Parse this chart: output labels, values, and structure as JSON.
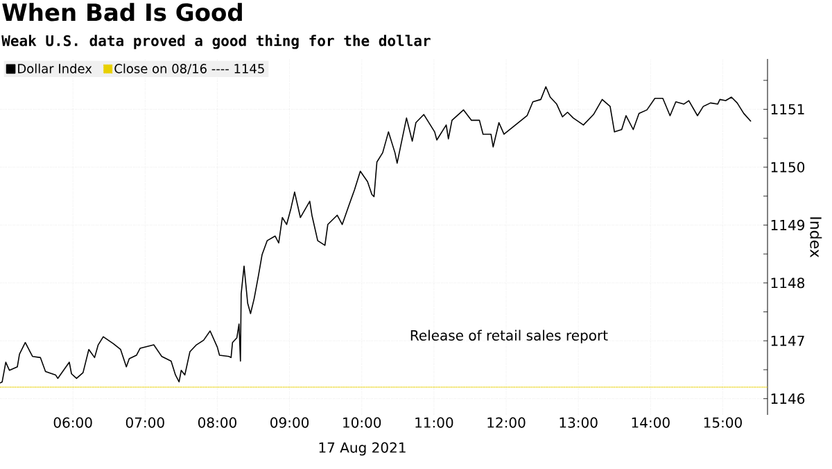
{
  "chart_data": {
    "type": "line",
    "title": "When Bad Is Good",
    "subtitle": "Weak U.S. data proved a good thing for the dollar",
    "xlabel": "17 Aug 2021",
    "ylabel": "Index",
    "annotations": [
      "Release of retail sales report"
    ],
    "xlim": [
      4.99,
      15.62
    ],
    "xticks": [
      {
        "value": 6,
        "label": "06:00"
      },
      {
        "value": 7,
        "label": "07:00"
      },
      {
        "value": 8,
        "label": "08:00"
      },
      {
        "value": 9,
        "label": "09:00"
      },
      {
        "value": 10,
        "label": "10:00"
      },
      {
        "value": 11,
        "label": "11:00"
      },
      {
        "value": 12,
        "label": "12:00"
      },
      {
        "value": 13,
        "label": "13:00"
      },
      {
        "value": 14,
        "label": "14:00"
      },
      {
        "value": 15,
        "label": "15:00"
      }
    ],
    "ylim": [
      1145.72,
      1151.87
    ],
    "yticks": [
      1146,
      {
        "value": 1146.5,
        "label": null
      },
      1147,
      {
        "value": 1147.5,
        "label": null
      },
      1148,
      {
        "value": 1148.5,
        "label": null
      },
      1149,
      {
        "value": 1149.5,
        "label": null
      },
      1150,
      {
        "value": 1150.5,
        "label": null
      },
      1151,
      {
        "value": 1151.5,
        "label": null
      }
    ],
    "grid": true,
    "legend": "top left",
    "ref_lines": [
      {
        "axis": "y",
        "value": 1146.2,
        "label": "Close on 08/16 ---- 1145",
        "color": "#e8d000",
        "line_style": "dotted"
      }
    ],
    "series": [
      {
        "name": "Dollar Index",
        "color": "#000000",
        "x": [
          4.99,
          5.02,
          5.07,
          5.12,
          5.23,
          5.26,
          5.34,
          5.44,
          5.55,
          5.62,
          5.76,
          5.79,
          5.95,
          5.98,
          6.05,
          6.14,
          6.22,
          6.3,
          6.35,
          6.42,
          6.56,
          6.66,
          6.74,
          6.78,
          6.88,
          6.93,
          7.12,
          7.23,
          7.36,
          7.42,
          7.47,
          7.5,
          7.55,
          7.62,
          7.71,
          7.81,
          7.9,
          8.0,
          8.03,
          8.16,
          8.19,
          8.21,
          8.27,
          8.3,
          8.32,
          8.33,
          8.37,
          8.42,
          8.46,
          8.51,
          8.57,
          8.62,
          8.69,
          8.8,
          8.85,
          8.9,
          8.96,
          9.02,
          9.07,
          9.15,
          9.28,
          9.31,
          9.39,
          9.49,
          9.53,
          9.66,
          9.73,
          9.82,
          9.9,
          9.98,
          10.08,
          10.14,
          10.17,
          10.21,
          10.29,
          10.37,
          10.46,
          10.49,
          10.54,
          10.62,
          10.7,
          10.75,
          10.86,
          11.01,
          11.04,
          11.17,
          11.2,
          11.25,
          11.41,
          11.52,
          11.63,
          11.68,
          11.71,
          11.79,
          11.82,
          11.9,
          11.97,
          12.09,
          12.29,
          12.37,
          12.48,
          12.55,
          12.61,
          12.7,
          12.78,
          12.85,
          12.93,
          13.07,
          13.21,
          13.33,
          13.44,
          13.5,
          13.6,
          13.66,
          13.76,
          13.84,
          13.95,
          14.06,
          14.17,
          14.27,
          14.35,
          14.46,
          14.53,
          14.65,
          14.73,
          14.83,
          14.93,
          14.96,
          15.04,
          15.12,
          15.2,
          15.29,
          15.39
        ],
        "values": [
          1146.27,
          1146.29,
          1146.63,
          1146.49,
          1146.55,
          1146.77,
          1146.97,
          1146.73,
          1146.71,
          1146.47,
          1146.41,
          1146.35,
          1146.63,
          1146.43,
          1146.35,
          1146.45,
          1146.85,
          1146.71,
          1146.93,
          1147.07,
          1146.95,
          1146.85,
          1146.55,
          1146.69,
          1146.75,
          1146.87,
          1146.93,
          1146.73,
          1146.65,
          1146.41,
          1146.29,
          1146.49,
          1146.41,
          1146.81,
          1146.93,
          1147.01,
          1147.17,
          1146.89,
          1146.75,
          1146.73,
          1146.71,
          1146.97,
          1147.05,
          1147.29,
          1146.65,
          1147.81,
          1148.29,
          1147.65,
          1147.47,
          1147.73,
          1148.13,
          1148.49,
          1148.73,
          1148.81,
          1148.69,
          1149.13,
          1149.01,
          1149.29,
          1149.57,
          1149.13,
          1149.41,
          1149.17,
          1148.73,
          1148.65,
          1149.01,
          1149.17,
          1149.01,
          1149.33,
          1149.61,
          1149.93,
          1149.75,
          1149.53,
          1149.49,
          1150.09,
          1150.25,
          1150.61,
          1150.25,
          1150.07,
          1150.37,
          1150.85,
          1150.45,
          1150.77,
          1150.91,
          1150.61,
          1150.47,
          1150.73,
          1150.49,
          1150.81,
          1150.99,
          1150.81,
          1150.81,
          1150.57,
          1150.57,
          1150.57,
          1150.35,
          1150.77,
          1150.57,
          1150.69,
          1150.89,
          1151.13,
          1151.17,
          1151.39,
          1151.21,
          1151.09,
          1150.87,
          1150.95,
          1150.85,
          1150.73,
          1150.91,
          1151.17,
          1151.05,
          1150.61,
          1150.65,
          1150.89,
          1150.65,
          1150.93,
          1150.99,
          1151.19,
          1151.19,
          1150.89,
          1151.13,
          1151.09,
          1151.15,
          1150.89,
          1151.05,
          1151.11,
          1151.09,
          1151.17,
          1151.15,
          1151.21,
          1151.11,
          1150.93,
          1150.79
        ]
      }
    ]
  }
}
